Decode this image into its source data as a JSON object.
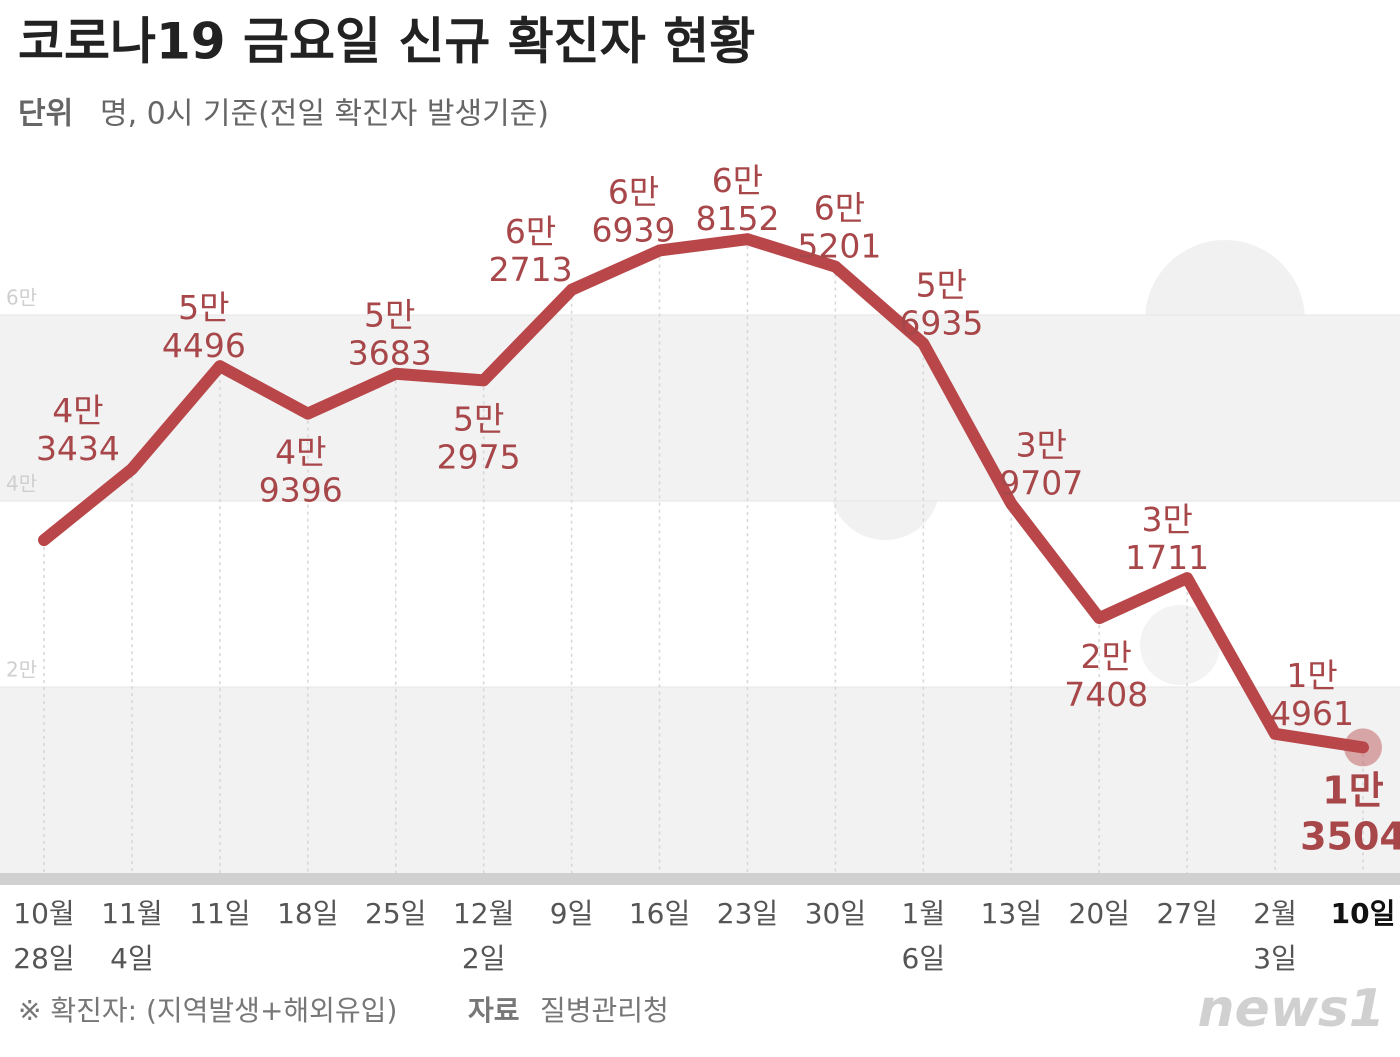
{
  "title": "코로나19 금요일 신규 확진자 현황",
  "unit_label": "단위",
  "unit": "명, 0시 기준(전일 확진자 발생기준)",
  "chart_data": {
    "type": "line",
    "categories": [
      "10월\n28일",
      "11월\n4일",
      "11일",
      "18일",
      "25일",
      "12월\n2일",
      "9일",
      "16일",
      "23일",
      "30일",
      "1월\n6일",
      "13일",
      "20일",
      "27일",
      "2월\n3일",
      "10일"
    ],
    "values": [
      35800,
      43434,
      54496,
      49396,
      53683,
      52975,
      62713,
      66939,
      68152,
      65201,
      56935,
      39707,
      27408,
      31711,
      14961,
      13504
    ],
    "value_labels": [
      null,
      "4만\n3434",
      "5만\n4496",
      "4만\n9396",
      "5만\n3683",
      "5만\n2975",
      "6만\n2713",
      "6만\n6939",
      "6만\n8152",
      "6만\n5201",
      "5만\n6935",
      "3만\n9707",
      "2만\n7408",
      "3만\n1711",
      "1만\n4961",
      "1만\n3504"
    ],
    "color": "#b9474a",
    "label_color": "#a8474a",
    "ylim": [
      0,
      80000
    ],
    "yticks": [
      {
        "value": 20000,
        "label": "2만"
      },
      {
        "value": 40000,
        "label": "4만"
      },
      {
        "value": 60000,
        "label": "6만"
      }
    ],
    "grid": true
  },
  "footer": {
    "note": "※ 확진자: (지역발생+해외유입)",
    "source_label": "자료",
    "source": "질병관리청"
  },
  "logo": "news1"
}
